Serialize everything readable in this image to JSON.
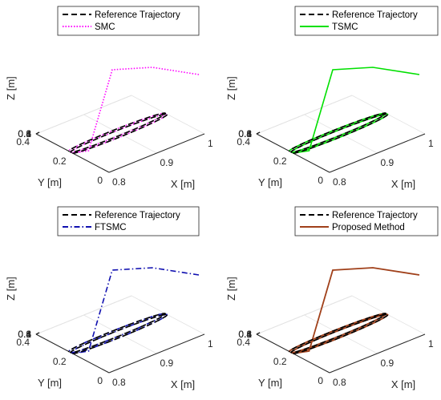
{
  "chart_data": [
    {
      "type": "line",
      "subplot": "top-left",
      "xlabel": "X [m]",
      "ylabel": "Y [m]",
      "zlabel": "Z [m]",
      "xticks": [
        "0.8",
        "0.9",
        "1"
      ],
      "yticks": [
        "0",
        "0.2",
        "0.4"
      ],
      "zticks": [
        "0.4",
        "0.6",
        "0.8",
        "1"
      ],
      "xlim": [
        0.8,
        1.0
      ],
      "ylim": [
        0.0,
        0.4
      ],
      "zlim": [
        0.4,
        1.0
      ],
      "grid": true,
      "legend_position": "top",
      "series": [
        {
          "name": "Reference Trajectory",
          "color": "#000000",
          "style": "dashed"
        },
        {
          "name": "SMC",
          "color": "#ff00ff",
          "style": "dotted"
        }
      ],
      "trajectory": {
        "center": [
          0.9,
          0.2,
          0.7
        ],
        "radius": 0.1,
        "turns": 2,
        "pitch": 0.02,
        "start": [
          0.8,
          0.42,
          0.85
        ]
      }
    },
    {
      "type": "line",
      "subplot": "top-right",
      "xlabel": "X [m]",
      "ylabel": "Y [m]",
      "zlabel": "Z [m]",
      "xticks": [
        "0.8",
        "0.9",
        "1"
      ],
      "yticks": [
        "0",
        "0.2",
        "0.4"
      ],
      "zticks": [
        "0.4",
        "0.6",
        "0.8",
        "1"
      ],
      "xlim": [
        0.8,
        1.0
      ],
      "ylim": [
        0.0,
        0.4
      ],
      "zlim": [
        0.4,
        1.0
      ],
      "grid": true,
      "legend_position": "top",
      "series": [
        {
          "name": "Reference Trajectory",
          "color": "#000000",
          "style": "dashed"
        },
        {
          "name": "TSMC",
          "color": "#00e000",
          "style": "solid"
        }
      ],
      "trajectory": {
        "center": [
          0.9,
          0.2,
          0.7
        ],
        "radius": 0.1,
        "turns": 2,
        "pitch": 0.02,
        "start": [
          0.8,
          0.42,
          0.85
        ]
      }
    },
    {
      "type": "line",
      "subplot": "bottom-left",
      "xlabel": "X [m]",
      "ylabel": "Y [m]",
      "zlabel": "Z [m]",
      "xticks": [
        "0.8",
        "0.9",
        "1"
      ],
      "yticks": [
        "0",
        "0.2",
        "0.4"
      ],
      "zticks": [
        "0.4",
        "0.6",
        "0.8",
        "1"
      ],
      "xlim": [
        0.8,
        1.0
      ],
      "ylim": [
        0.0,
        0.4
      ],
      "zlim": [
        0.4,
        1.0
      ],
      "grid": true,
      "legend_position": "top",
      "series": [
        {
          "name": "Reference Trajectory",
          "color": "#000000",
          "style": "dashed"
        },
        {
          "name": "FTSMC",
          "color": "#1010b0",
          "style": "dash-dot"
        }
      ],
      "trajectory": {
        "center": [
          0.9,
          0.2,
          0.7
        ],
        "radius": 0.1,
        "turns": 2,
        "pitch": 0.02,
        "start": [
          0.8,
          0.42,
          0.85
        ]
      }
    },
    {
      "type": "line",
      "subplot": "bottom-right",
      "xlabel": "X [m]",
      "ylabel": "Y [m]",
      "zlabel": "Z [m]",
      "xticks": [
        "0.8",
        "0.9",
        "1"
      ],
      "yticks": [
        "0",
        "0.2",
        "0.4"
      ],
      "zticks": [
        "0.4",
        "0.6",
        "0.8",
        "1"
      ],
      "xlim": [
        0.8,
        1.0
      ],
      "ylim": [
        0.0,
        0.4
      ],
      "zlim": [
        0.4,
        1.0
      ],
      "grid": true,
      "legend_position": "top",
      "series": [
        {
          "name": "Reference Trajectory",
          "color": "#000000",
          "style": "dashed"
        },
        {
          "name": "Proposed Method",
          "color": "#a0401a",
          "style": "solid"
        }
      ],
      "trajectory": {
        "center": [
          0.9,
          0.2,
          0.7
        ],
        "radius": 0.1,
        "turns": 2,
        "pitch": 0.02,
        "start": [
          0.8,
          0.42,
          0.85
        ]
      }
    }
  ]
}
